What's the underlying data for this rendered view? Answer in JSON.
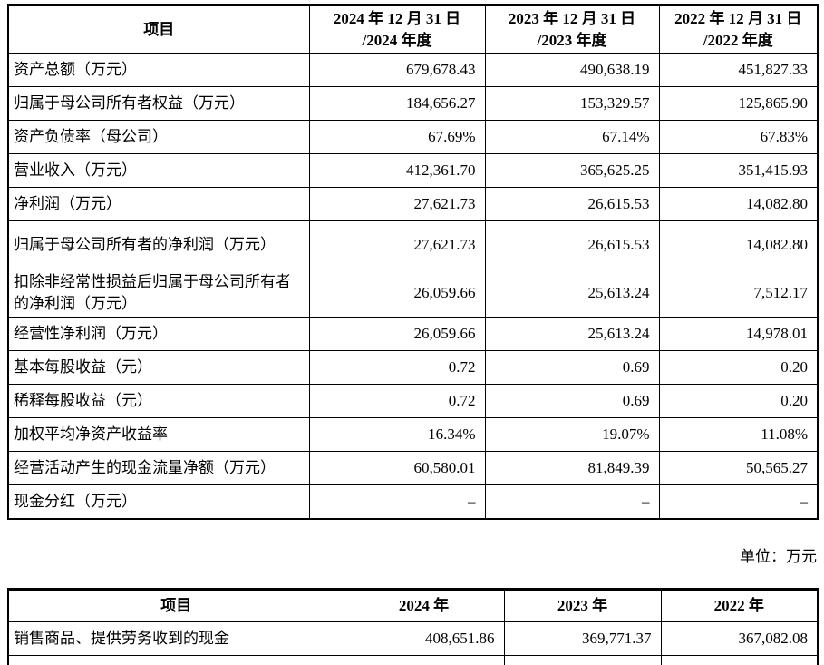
{
  "unit_label": "单位：万元",
  "table1": {
    "headers": [
      "项目",
      "2024 年 12 月 31 日\n/2024 年度",
      "2023 年 12 月 31 日\n/2023 年度",
      "2022 年 12 月 31 日\n/2022 年度"
    ],
    "rows": [
      {
        "label": "资产总额（万元）",
        "values": [
          "679,678.43",
          "490,638.19",
          "451,827.33"
        ]
      },
      {
        "label": "归属于母公司所有者权益（万元）",
        "values": [
          "184,656.27",
          "153,329.57",
          "125,865.90"
        ]
      },
      {
        "label": "资产负债率（母公司）",
        "values": [
          "67.69%",
          "67.14%",
          "67.83%"
        ]
      },
      {
        "label": "营业收入（万元）",
        "values": [
          "412,361.70",
          "365,625.25",
          "351,415.93"
        ]
      },
      {
        "label": "净利润（万元）",
        "values": [
          "27,621.73",
          "26,615.53",
          "14,082.80"
        ]
      },
      {
        "label": "归属于母公司所有者的净利润（万元）",
        "values": [
          "27,621.73",
          "26,615.53",
          "14,082.80"
        ]
      },
      {
        "label": "扣除非经常性损益后归属于母公司所有者的净利润（万元）",
        "values": [
          "26,059.66",
          "25,613.24",
          "7,512.17"
        ]
      },
      {
        "label": "经营性净利润（万元）",
        "values": [
          "26,059.66",
          "25,613.24",
          "14,978.01"
        ]
      },
      {
        "label": "基本每股收益（元）",
        "values": [
          "0.72",
          "0.69",
          "0.20"
        ]
      },
      {
        "label": "稀释每股收益（元）",
        "values": [
          "0.72",
          "0.69",
          "0.20"
        ]
      },
      {
        "label": "加权平均净资产收益率",
        "values": [
          "16.34%",
          "19.07%",
          "11.08%"
        ]
      },
      {
        "label": "经营活动产生的现金流量净额（万元）",
        "values": [
          "60,580.01",
          "81,849.39",
          "50,565.27"
        ]
      },
      {
        "label": "现金分红（万元）",
        "values": [
          "–",
          "–",
          "–"
        ]
      }
    ]
  },
  "table2": {
    "headers": [
      "项目",
      "2024 年",
      "2023 年",
      "2022 年"
    ],
    "rows": [
      {
        "label": "销售商品、提供劳务收到的现金",
        "values": [
          "408,651.86",
          "369,771.37",
          "367,082.08"
        ]
      }
    ]
  }
}
